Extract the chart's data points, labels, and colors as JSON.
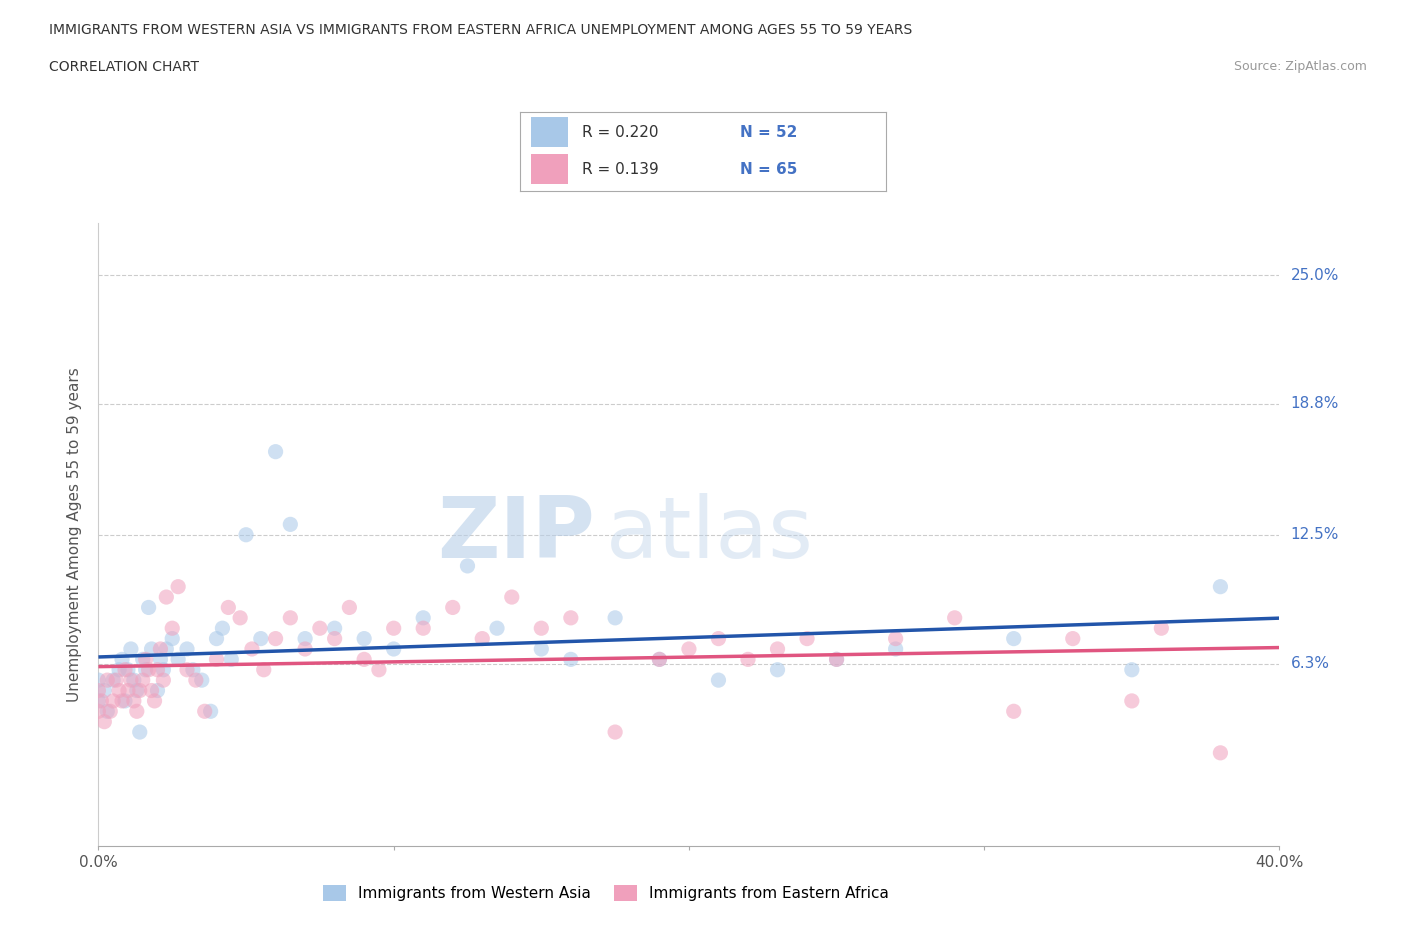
{
  "title_line1": "IMMIGRANTS FROM WESTERN ASIA VS IMMIGRANTS FROM EASTERN AFRICA UNEMPLOYMENT AMONG AGES 55 TO 59 YEARS",
  "title_line2": "CORRELATION CHART",
  "source_text": "Source: ZipAtlas.com",
  "watermark_zip": "ZIP",
  "watermark_atlas": "atlas",
  "xlabel": "",
  "ylabel": "Unemployment Among Ages 55 to 59 years",
  "xlim": [
    0.0,
    0.4
  ],
  "ylim": [
    -0.025,
    0.275
  ],
  "ytick_vals": [
    0.063,
    0.125,
    0.188,
    0.25
  ],
  "ytick_labels": [
    "6.3%",
    "12.5%",
    "18.8%",
    "25.0%"
  ],
  "series1_name": "Immigrants from Western Asia",
  "series1_color": "#a8c8e8",
  "series1_line_color": "#2255aa",
  "series1_R": 0.22,
  "series1_N": 52,
  "series1_x": [
    0.0,
    0.0,
    0.002,
    0.003,
    0.005,
    0.007,
    0.008,
    0.009,
    0.01,
    0.011,
    0.012,
    0.013,
    0.014,
    0.015,
    0.016,
    0.017,
    0.018,
    0.02,
    0.021,
    0.022,
    0.023,
    0.025,
    0.027,
    0.03,
    0.032,
    0.035,
    0.038,
    0.04,
    0.042,
    0.045,
    0.05,
    0.055,
    0.06,
    0.065,
    0.07,
    0.08,
    0.09,
    0.1,
    0.11,
    0.125,
    0.135,
    0.15,
    0.16,
    0.175,
    0.19,
    0.21,
    0.23,
    0.25,
    0.27,
    0.31,
    0.35,
    0.38
  ],
  "series1_y": [
    0.045,
    0.055,
    0.05,
    0.04,
    0.055,
    0.06,
    0.065,
    0.045,
    0.06,
    0.07,
    0.055,
    0.05,
    0.03,
    0.065,
    0.06,
    0.09,
    0.07,
    0.05,
    0.065,
    0.06,
    0.07,
    0.075,
    0.065,
    0.07,
    0.06,
    0.055,
    0.04,
    0.075,
    0.08,
    0.065,
    0.125,
    0.075,
    0.165,
    0.13,
    0.075,
    0.08,
    0.075,
    0.07,
    0.085,
    0.11,
    0.08,
    0.07,
    0.065,
    0.085,
    0.065,
    0.055,
    0.06,
    0.065,
    0.07,
    0.075,
    0.06,
    0.1
  ],
  "series2_name": "Immigrants from Eastern Africa",
  "series2_color": "#f0a0bc",
  "series2_line_color": "#e05580",
  "series2_R": 0.139,
  "series2_N": 65,
  "series2_x": [
    0.0,
    0.0,
    0.001,
    0.002,
    0.003,
    0.004,
    0.005,
    0.006,
    0.007,
    0.008,
    0.009,
    0.01,
    0.011,
    0.012,
    0.013,
    0.014,
    0.015,
    0.016,
    0.017,
    0.018,
    0.019,
    0.02,
    0.021,
    0.022,
    0.023,
    0.025,
    0.027,
    0.03,
    0.033,
    0.036,
    0.04,
    0.044,
    0.048,
    0.052,
    0.056,
    0.06,
    0.065,
    0.07,
    0.075,
    0.08,
    0.085,
    0.09,
    0.095,
    0.1,
    0.11,
    0.12,
    0.13,
    0.14,
    0.15,
    0.16,
    0.175,
    0.19,
    0.2,
    0.21,
    0.22,
    0.23,
    0.24,
    0.25,
    0.27,
    0.29,
    0.31,
    0.33,
    0.35,
    0.36,
    0.38
  ],
  "series2_y": [
    0.04,
    0.05,
    0.045,
    0.035,
    0.055,
    0.04,
    0.045,
    0.055,
    0.05,
    0.045,
    0.06,
    0.05,
    0.055,
    0.045,
    0.04,
    0.05,
    0.055,
    0.065,
    0.06,
    0.05,
    0.045,
    0.06,
    0.07,
    0.055,
    0.095,
    0.08,
    0.1,
    0.06,
    0.055,
    0.04,
    0.065,
    0.09,
    0.085,
    0.07,
    0.06,
    0.075,
    0.085,
    0.07,
    0.08,
    0.075,
    0.09,
    0.065,
    0.06,
    0.08,
    0.08,
    0.09,
    0.075,
    0.095,
    0.08,
    0.085,
    0.03,
    0.065,
    0.07,
    0.075,
    0.065,
    0.07,
    0.075,
    0.065,
    0.075,
    0.085,
    0.04,
    0.075,
    0.045,
    0.08,
    0.02
  ],
  "grid_color": "#cccccc",
  "background_color": "#ffffff",
  "text_color_blue": "#4472c4",
  "scatter_size": 120,
  "scatter_alpha": 0.55,
  "regression_lw": 2.5
}
